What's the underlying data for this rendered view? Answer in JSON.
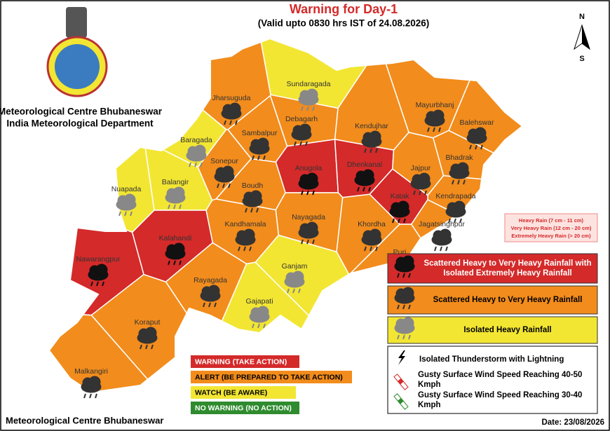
{
  "header": {
    "title": "Warning for Day-1",
    "subtitle": "(Valid upto 0830 hrs IST of 24.08.2026)"
  },
  "organization": [
    "Meteorological Centre Bhubaneswar",
    "India Meteorological Department"
  ],
  "compass": {
    "north": "N",
    "south": "S"
  },
  "districts": [
    {
      "name": "Sundaragada",
      "color": "#f2e633"
    },
    {
      "name": "Mayurbhanj",
      "color": "#f28c1c"
    },
    {
      "name": "Jharsuguda",
      "color": "#f28c1c"
    },
    {
      "name": "Sambalpur",
      "color": "#f28c1c"
    },
    {
      "name": "Debagarh",
      "color": "#f28c1c"
    },
    {
      "name": "Kendujhar",
      "color": "#f28c1c"
    },
    {
      "name": "Balehswar",
      "color": "#f28c1c"
    },
    {
      "name": "Baragada",
      "color": "#f2e633"
    },
    {
      "name": "Anugola",
      "color": "#d42a2a"
    },
    {
      "name": "Dhenkanal",
      "color": "#d42a2a"
    },
    {
      "name": "Sonepur",
      "color": "#f28c1c"
    },
    {
      "name": "Bhadrak",
      "color": "#f28c1c"
    },
    {
      "name": "Jajpur",
      "color": "#f28c1c"
    },
    {
      "name": "Nuapada",
      "color": "#f2e633"
    },
    {
      "name": "Balangir",
      "color": "#f2e633"
    },
    {
      "name": "Boudh",
      "color": "#f28c1c"
    },
    {
      "name": "Kendrapada",
      "color": "#f28c1c"
    },
    {
      "name": "Katak",
      "color": "#d42a2a"
    },
    {
      "name": "Jagatsinghpur",
      "color": "#f28c1c"
    },
    {
      "name": "Nayagada",
      "color": "#f28c1c"
    },
    {
      "name": "Khordha",
      "color": "#f28c1c"
    },
    {
      "name": "Puri",
      "color": "#f28c1c"
    },
    {
      "name": "Kandhamala",
      "color": "#f28c1c"
    },
    {
      "name": "Kalahandi",
      "color": "#d42a2a"
    },
    {
      "name": "Nawarangpur",
      "color": "#d42a2a"
    },
    {
      "name": "Ganjam",
      "color": "#f2e633"
    },
    {
      "name": "Rayagada",
      "color": "#f28c1c"
    },
    {
      "name": "Gajapati",
      "color": "#f2e633"
    },
    {
      "name": "Koraput",
      "color": "#f28c1c"
    },
    {
      "name": "Malkangiri",
      "color": "#f28c1c"
    }
  ],
  "rain_scale": [
    "Heavy Rain (7 cm - 11 cm)",
    "Very Heavy Rain (12 cm - 20 cm)",
    "Extremely Heavy Rain (> 20 cm)"
  ],
  "impact_legend": [
    {
      "label": "Scattered Heavy to Very Heavy Rainfall with Isolated Extremely Heavy Rainfall",
      "color": "#d42a2a"
    },
    {
      "label": "Scattered Heavy to Very Heavy Rainfall",
      "color": "#f28c1c"
    },
    {
      "label": "Isolated Heavy Rainfall",
      "color": "#f2e633"
    }
  ],
  "symbol_legend": [
    "Isolated Thunderstorm with Lightning",
    "Gusty Surface Wind Speed Reaching 40-50 Kmph",
    "Gusty Surface Wind Speed Reaching 30-40 Kmph"
  ],
  "warning_levels": [
    {
      "label": "WARNING (TAKE ACTION)",
      "color": "#d42a2a"
    },
    {
      "label": "ALERT (BE PREPARED TO TAKE ACTION)",
      "color": "#f28c1c"
    },
    {
      "label": "WATCH (BE AWARE)",
      "color": "#f2e633"
    },
    {
      "label": "NO WARNING (NO ACTION)",
      "color": "#2e8b2e"
    }
  ],
  "footer": {
    "left": "Meteorological Centre Bhubaneswar",
    "date": "Date: 23/08/2026"
  }
}
